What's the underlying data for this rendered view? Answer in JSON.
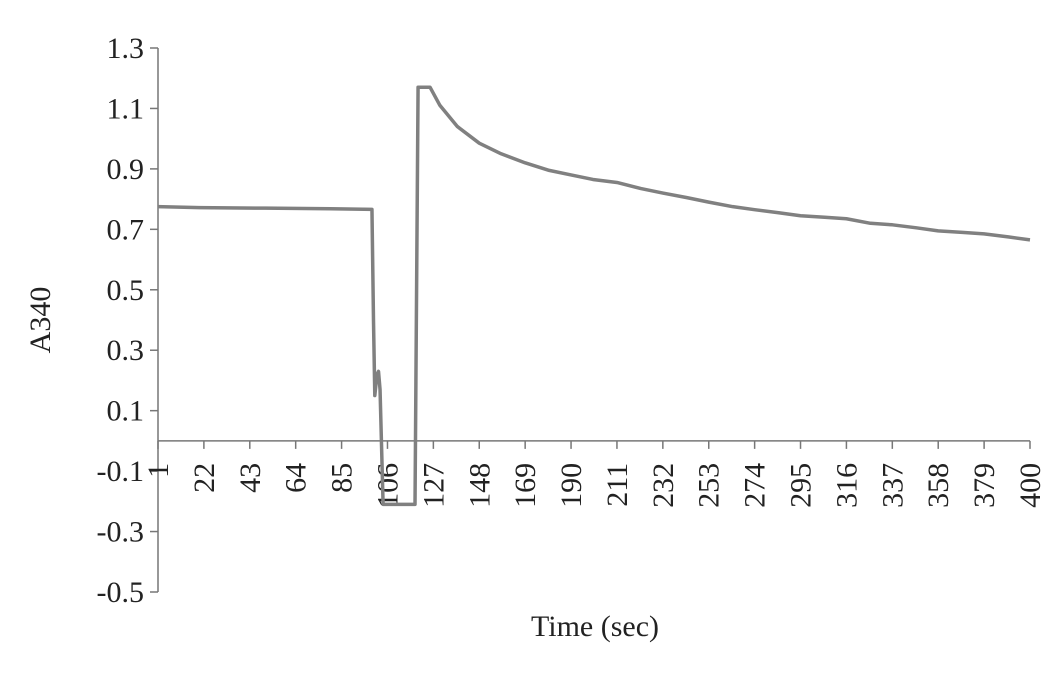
{
  "chart_data": {
    "type": "line",
    "x_label": "Time (sec)",
    "y_label": "A340",
    "xlim": [
      1,
      400
    ],
    "ylim": [
      -0.5,
      1.3
    ],
    "xticks": [
      1,
      22,
      43,
      64,
      85,
      106,
      127,
      148,
      169,
      190,
      211,
      232,
      253,
      274,
      295,
      316,
      337,
      358,
      379,
      400
    ],
    "yticks": [
      -0.5,
      -0.3,
      -0.1,
      0.1,
      0.3,
      0.5,
      0.7,
      0.9,
      1.1,
      1.3
    ],
    "series": [
      {
        "color": "#808080",
        "x": [
          1,
          20,
          50,
          80,
          98.9,
          99.6,
          100.2,
          101.2,
          101.9,
          102.6,
          104,
          110,
          118.6,
          120,
          125.5,
          130,
          138,
          148,
          158,
          169,
          180,
          190,
          200,
          211,
          222,
          232,
          243,
          253,
          264,
          274,
          285,
          295,
          306,
          316,
          327,
          337,
          348,
          358,
          369,
          379,
          390,
          400
        ],
        "values": [
          0.775,
          0.772,
          0.77,
          0.768,
          0.766,
          0.4,
          0.15,
          0.22,
          0.23,
          0.17,
          -0.21,
          -0.21,
          -0.21,
          1.17,
          1.17,
          1.11,
          1.04,
          0.985,
          0.95,
          0.92,
          0.895,
          0.88,
          0.865,
          0.855,
          0.835,
          0.82,
          0.805,
          0.79,
          0.775,
          0.765,
          0.755,
          0.745,
          0.74,
          0.735,
          0.72,
          0.715,
          0.705,
          0.695,
          0.69,
          0.685,
          0.675,
          0.665
        ]
      }
    ]
  }
}
